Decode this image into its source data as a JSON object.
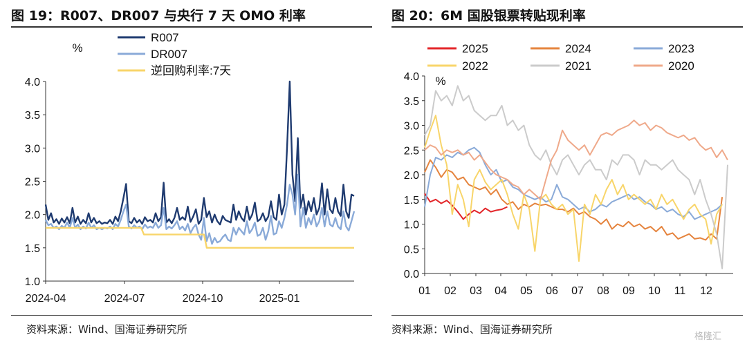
{
  "source_left": "资料来源：Wind、国海证券研究所",
  "source_right": "资料来源：Wind、国海证券研究所",
  "watermark": "格隆汇",
  "chart_data": [
    {
      "type": "line",
      "title": "图 19：R007、DR007 与央行 7 天 OMO 利率",
      "ylabel": "%",
      "ylim": [
        1.0,
        4.0
      ],
      "yticks": [
        "1.0",
        "1.5",
        "2.0",
        "2.5",
        "3.0",
        "3.5",
        "4.0"
      ],
      "xticks": [
        "2024-04",
        "2024-07",
        "2024-10",
        "2025-01"
      ],
      "legend_position": "top",
      "series": [
        {
          "name": "R007",
          "color": "#1f3b70",
          "values": [
            2.15,
            1.92,
            2.02,
            1.88,
            1.93,
            1.86,
            1.94,
            1.88,
            1.96,
            1.87,
            2.1,
            1.88,
            1.97,
            1.86,
            1.92,
            1.87,
            2.02,
            1.88,
            1.95,
            1.87,
            1.9,
            1.86,
            1.88,
            1.87,
            1.92,
            1.86,
            1.97,
            1.9,
            2.05,
            2.25,
            2.46,
            1.9,
            1.87,
            1.95,
            1.88,
            1.92,
            1.86,
            1.96,
            1.9,
            1.92,
            1.88,
            2.02,
            1.9,
            1.96,
            2.48,
            1.88,
            1.93,
            1.87,
            1.95,
            2.1,
            1.92,
            1.96,
            1.92,
            2.12,
            1.89,
            1.97,
            2.08,
            1.86,
            1.92,
            2.25,
            1.96,
            2.05,
            1.88,
            2.0,
            1.9,
            1.85,
            1.98,
            1.92,
            1.9,
            1.88,
            2.15,
            1.92,
            2.05,
            1.95,
            1.9,
            2.12,
            1.92,
            2.0,
            2.18,
            1.9,
            1.93,
            2.02,
            1.9,
            1.97,
            2.2,
            1.96,
            1.92,
            2.3,
            2.0,
            2.15,
            3.0,
            4.0,
            2.6,
            2.2,
            3.15,
            2.1,
            2.3,
            2.0,
            2.2,
            2.05,
            2.25,
            2.0,
            2.1,
            2.47,
            2.0,
            2.38,
            2.08,
            2.02,
            2.25,
            2.05,
            1.98,
            2.45,
            2.05,
            1.95,
            2.3,
            2.28
          ]
        },
        {
          "name": "DR007",
          "color": "#8aaad8",
          "values": [
            1.92,
            1.84,
            1.86,
            1.8,
            1.82,
            1.78,
            1.83,
            1.8,
            1.88,
            1.8,
            1.95,
            1.8,
            1.85,
            1.78,
            1.82,
            1.79,
            1.88,
            1.8,
            1.84,
            1.78,
            1.8,
            1.78,
            1.8,
            1.79,
            1.82,
            1.78,
            1.86,
            1.82,
            1.92,
            2.05,
            2.15,
            1.82,
            1.79,
            1.84,
            1.8,
            1.82,
            1.78,
            1.85,
            1.8,
            1.82,
            1.8,
            1.88,
            1.8,
            1.84,
            2.1,
            1.78,
            1.82,
            1.79,
            1.84,
            1.9,
            1.78,
            1.82,
            1.76,
            1.86,
            1.72,
            1.8,
            1.85,
            1.7,
            1.62,
            1.95,
            1.6,
            1.72,
            1.56,
            1.65,
            1.58,
            1.6,
            1.66,
            1.7,
            1.62,
            1.6,
            1.8,
            1.7,
            1.8,
            1.75,
            1.7,
            1.9,
            1.72,
            1.78,
            1.88,
            1.68,
            1.7,
            1.8,
            1.62,
            1.75,
            1.98,
            1.7,
            1.72,
            1.9,
            1.8,
            1.95,
            2.15,
            2.45,
            2.3,
            2.0,
            2.6,
            1.82,
            2.1,
            1.8,
            1.95,
            1.85,
            2.0,
            1.82,
            1.9,
            2.1,
            1.82,
            2.05,
            1.85,
            1.82,
            1.95,
            1.82,
            1.78,
            2.05,
            1.82,
            1.76,
            1.9,
            2.05
          ]
        },
        {
          "name": "逆回购利率:7天",
          "color": "#f8d56a",
          "values": [
            1.8,
            1.8,
            1.8,
            1.8,
            1.8,
            1.8,
            1.8,
            1.8,
            1.8,
            1.8,
            1.8,
            1.8,
            1.8,
            1.8,
            1.8,
            1.8,
            1.8,
            1.8,
            1.8,
            1.8,
            1.8,
            1.8,
            1.8,
            1.8,
            1.8,
            1.8,
            1.8,
            1.8,
            1.8,
            1.8,
            1.8,
            1.8,
            1.8,
            1.8,
            1.8,
            1.8,
            1.7,
            1.7,
            1.7,
            1.7,
            1.7,
            1.7,
            1.7,
            1.7,
            1.7,
            1.7,
            1.7,
            1.7,
            1.7,
            1.7,
            1.7,
            1.7,
            1.7,
            1.7,
            1.7,
            1.7,
            1.7,
            1.7,
            1.7,
            1.5,
            1.5,
            1.5,
            1.5,
            1.5,
            1.5,
            1.5,
            1.5,
            1.5,
            1.5,
            1.5,
            1.5,
            1.5,
            1.5,
            1.5,
            1.5,
            1.5,
            1.5,
            1.5,
            1.5,
            1.5,
            1.5,
            1.5,
            1.5,
            1.5,
            1.5,
            1.5,
            1.5,
            1.5,
            1.5,
            1.5,
            1.5,
            1.5,
            1.5,
            1.5,
            1.5,
            1.5,
            1.5,
            1.5,
            1.5,
            1.5,
            1.5,
            1.5,
            1.5,
            1.5,
            1.5,
            1.5,
            1.5,
            1.5,
            1.5,
            1.5,
            1.5,
            1.5,
            1.5,
            1.5
          ]
        }
      ]
    },
    {
      "type": "line",
      "title": "图 20：6M 国股银票转贴现利率",
      "ylabel": "%",
      "ylim": [
        0.0,
        4.0
      ],
      "yticks": [
        "0.0",
        "0.5",
        "1.0",
        "1.5",
        "2.0",
        "2.5",
        "3.0",
        "3.5",
        "4.0"
      ],
      "xticks": [
        "01",
        "02",
        "03",
        "04",
        "05",
        "06",
        "07",
        "08",
        "09",
        "10",
        "11",
        "12"
      ],
      "legend_position": "top",
      "series": [
        {
          "name": "2025",
          "color": "#e3262a",
          "values": [
            1.62,
            1.45,
            1.5,
            1.42,
            1.48,
            1.38,
            1.25,
            1.1,
            1.2,
            1.28,
            1.22,
            1.32,
            1.25,
            1.28,
            1.3,
            1.35
          ]
        },
        {
          "name": "2024",
          "color": "#e5843e",
          "values": [
            2.05,
            2.3,
            2.15,
            1.95,
            2.1,
            2.05,
            1.9,
            1.95,
            1.8,
            1.75,
            1.7,
            1.75,
            1.6,
            1.7,
            1.5,
            1.4,
            1.45,
            1.3,
            1.4,
            1.35,
            1.42,
            1.38,
            1.4,
            1.35,
            1.3,
            1.3,
            1.25,
            1.32,
            1.2,
            1.25,
            1.15,
            1.1,
            1.0,
            1.1,
            0.9,
            1.0,
            0.95,
            1.05,
            0.95,
            1.0,
            0.9,
            0.95,
            0.85,
            0.95,
            0.78,
            0.82,
            0.7,
            0.75,
            0.8,
            0.7,
            0.72,
            0.68,
            0.8,
            0.7,
            1.55
          ]
        },
        {
          "name": "2023",
          "color": "#8aaad8",
          "values": [
            1.35,
            2.0,
            2.35,
            2.3,
            2.4,
            2.35,
            2.45,
            2.4,
            2.5,
            2.55,
            2.45,
            2.2,
            2.0,
            2.1,
            1.85,
            1.9,
            1.75,
            1.7,
            1.6,
            1.55,
            1.5,
            1.55,
            1.45,
            1.5,
            1.8,
            1.55,
            1.5,
            1.4,
            1.3,
            1.35,
            1.25,
            1.3,
            1.4,
            1.35,
            1.45,
            1.5,
            1.55,
            1.6,
            1.5,
            1.55,
            1.45,
            1.4,
            1.3,
            1.35,
            1.25,
            1.3,
            1.2,
            1.15,
            1.25,
            1.1,
            1.15,
            1.2,
            1.25,
            1.3,
            1.4
          ]
        },
        {
          "name": "2022",
          "color": "#f8d56a",
          "values": [
            2.55,
            2.9,
            3.2,
            2.6,
            2.2,
            1.2,
            1.8,
            1.5,
            0.95,
            1.9,
            2.1,
            1.85,
            1.7,
            1.8,
            1.9,
            1.6,
            1.2,
            0.9,
            1.6,
            1.3,
            0.45,
            1.5,
            1.6,
            1.4,
            1.3,
            1.4,
            1.2,
            1.3,
            0.25,
            1.4,
            1.2,
            1.6,
            1.4,
            1.7,
            1.9,
            1.6,
            1.8,
            1.5,
            1.6,
            1.5,
            1.4,
            1.5,
            1.3,
            1.6,
            1.4,
            1.5,
            1.3,
            1.1,
            1.3,
            1.4,
            1.2,
            1.1,
            0.6,
            1.2,
            1.4
          ]
        },
        {
          "name": "2021",
          "color": "#cbcbcb",
          "values": [
            2.8,
            3.0,
            3.7,
            3.5,
            3.6,
            3.4,
            3.8,
            3.5,
            3.6,
            3.3,
            3.2,
            3.1,
            3.2,
            3.2,
            3.4,
            3.0,
            3.1,
            2.9,
            3.0,
            2.6,
            2.4,
            2.3,
            2.5,
            2.2,
            2.0,
            2.3,
            2.4,
            2.2,
            2.0,
            2.2,
            2.3,
            2.1,
            2.1,
            1.9,
            2.3,
            2.2,
            2.4,
            2.4,
            2.3,
            2.0,
            2.3,
            2.2,
            2.2,
            2.1,
            2.2,
            2.3,
            2.1,
            2.0,
            1.9,
            1.6,
            1.9,
            1.5,
            1.2,
            0.8,
            0.1,
            2.2
          ]
        },
        {
          "name": "2020",
          "color": "#efa98a",
          "values": [
            2.5,
            2.6,
            2.55,
            2.4,
            2.5,
            2.45,
            2.5,
            2.4,
            2.45,
            2.3,
            2.4,
            2.25,
            2.1,
            2.0,
            1.95,
            1.9,
            1.8,
            1.75,
            1.6,
            1.7,
            1.6,
            1.5,
            1.9,
            2.3,
            2.5,
            2.9,
            2.7,
            2.6,
            2.5,
            2.6,
            2.4,
            2.6,
            2.8,
            2.85,
            2.8,
            2.9,
            2.95,
            3.0,
            3.1,
            3.0,
            3.05,
            2.9,
            3.0,
            2.95,
            2.85,
            2.8,
            2.75,
            2.8,
            2.7,
            2.75,
            2.6,
            2.5,
            2.55,
            2.35,
            2.5,
            2.3
          ]
        }
      ]
    }
  ]
}
